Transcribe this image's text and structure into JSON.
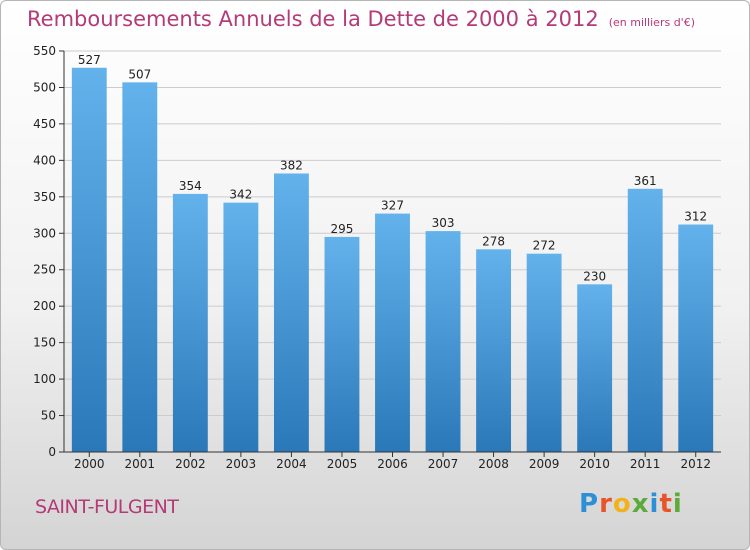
{
  "title": "Remboursements Annuels de la Dette de 2000 à 2012",
  "subtitle": "(en milliers d'€)",
  "commune": "SAINT-FULGENT",
  "logo": {
    "letters": [
      "P",
      "r",
      "o",
      "x",
      "i",
      "t",
      "i"
    ],
    "colors": [
      "#2d8fd5",
      "#e8542a",
      "#f2b21c",
      "#5cab3a",
      "#2d8fd5",
      "#e8542a",
      "#5cab3a"
    ]
  },
  "colors": {
    "title": "#b43a78",
    "bar_top": "#64b2ec",
    "bar_bottom": "#2a78b8",
    "grid": "#cccccc"
  },
  "chart_data": {
    "type": "bar",
    "categories": [
      "2000",
      "2001",
      "2002",
      "2003",
      "2004",
      "2005",
      "2006",
      "2007",
      "2008",
      "2009",
      "2010",
      "2011",
      "2012"
    ],
    "values": [
      527,
      507,
      354,
      342,
      382,
      295,
      327,
      303,
      278,
      272,
      230,
      361,
      312
    ],
    "data_labels": [
      "527",
      "507",
      "354",
      "342",
      "382",
      "295",
      "327",
      "303",
      "278",
      "272",
      "230",
      "361",
      "312"
    ],
    "ylim": [
      0,
      550
    ],
    "yticks": [
      0,
      50,
      100,
      150,
      200,
      250,
      300,
      350,
      400,
      450,
      500,
      550
    ],
    "grid": true
  }
}
